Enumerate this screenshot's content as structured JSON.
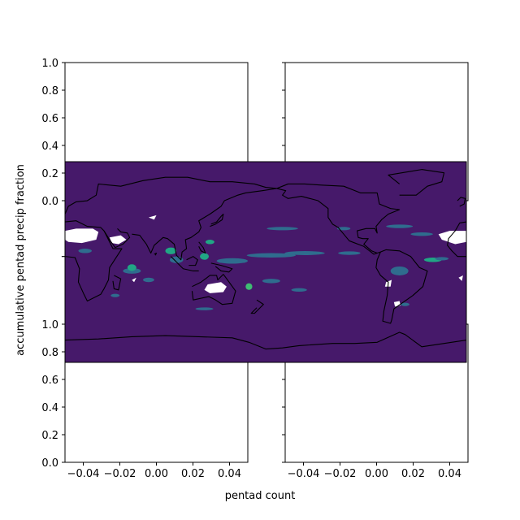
{
  "chart_data": {
    "type": "heatmap",
    "xlabel": "pentad count",
    "ylabel": "accumulative pentad precip fraction",
    "panels": [
      {
        "position": "top-left",
        "xlim": [
          -0.05,
          0.05
        ],
        "ylim": [
          0.0,
          1.0
        ],
        "xticks": [
          "-0.04",
          "-0.02",
          "0.00",
          "0.02",
          "0.04"
        ],
        "yticks": [
          "0.0",
          "0.2",
          "0.4",
          "0.6",
          "0.8",
          "1.0"
        ],
        "show_xticklabels": false,
        "show_yticklabels": true
      },
      {
        "position": "top-right",
        "xlim": [
          -0.05,
          0.05
        ],
        "ylim": [
          0.0,
          1.0
        ],
        "xticks": [
          "-0.04",
          "-0.02",
          "0.00",
          "0.02",
          "0.04"
        ],
        "yticks": [
          "0.0",
          "0.2",
          "0.4",
          "0.6",
          "0.8",
          "1.0"
        ],
        "show_xticklabels": false,
        "show_yticklabels": false
      },
      {
        "position": "bottom-left",
        "xlim": [
          -0.05,
          0.05
        ],
        "ylim": [
          0.0,
          1.0
        ],
        "xticks": [
          "-0.04",
          "-0.02",
          "0.00",
          "0.02",
          "0.04"
        ],
        "yticks": [
          "0.0",
          "0.2",
          "0.4",
          "0.6",
          "0.8",
          "1.0"
        ],
        "show_xticklabels": true,
        "show_yticklabels": true
      },
      {
        "position": "bottom-right",
        "xlim": [
          -0.05,
          0.05
        ],
        "ylim": [
          0.0,
          1.0
        ],
        "xticks": [
          "-0.04",
          "-0.02",
          "0.00",
          "0.02",
          "0.04"
        ],
        "yticks": [
          "0.0",
          "0.2",
          "0.4",
          "0.6",
          "0.8",
          "1.0"
        ],
        "show_xticklabels": true,
        "show_yticklabels": false
      }
    ],
    "map_overlay": {
      "projection": "plate-carree, centered 180",
      "background_color": "#46196a",
      "coastlines": true,
      "colors": {
        "low": "#46196a",
        "mid": "#2f6c8e",
        "high": "#21a685",
        "peak": "#3fbc73",
        "missing": "#ffffff"
      }
    }
  }
}
